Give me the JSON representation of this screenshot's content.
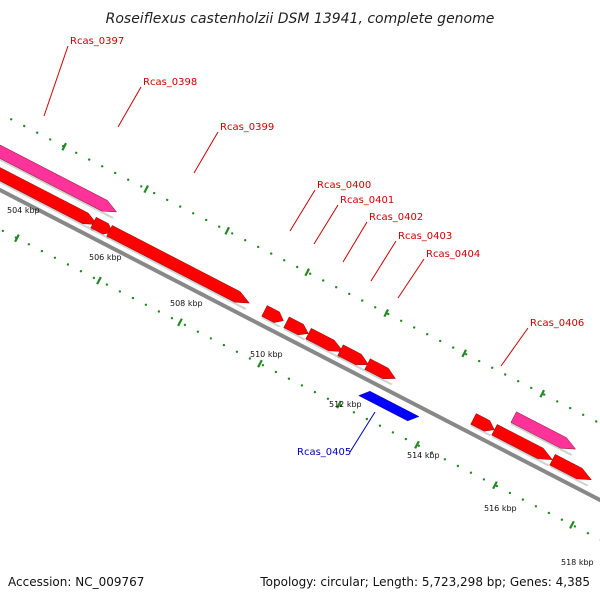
{
  "title": "Roseiflexus castenholzii DSM 13941, complete genome",
  "footer": {
    "accession": "Accession: NC_009767",
    "summary": "Topology: circular; Length: 5,723,298 bp; Genes: 4,385"
  },
  "colors": {
    "forward_cds": "#ff0000",
    "reverse_cds": "#0000ff",
    "forward_feature": "#ff3399",
    "backbone": "#888888",
    "forward_label": "#cc0000",
    "reverse_label": "#0000bb",
    "ticks": "#228822"
  },
  "ticks": [
    {
      "label": "504 kbp"
    },
    {
      "label": "506 kbp"
    },
    {
      "label": "508 kbp"
    },
    {
      "label": "510 kbp"
    },
    {
      "label": "512 kbp"
    },
    {
      "label": "514 kbp"
    },
    {
      "label": "516 kbp"
    },
    {
      "label": "518 kbp"
    }
  ],
  "genes": [
    {
      "label": "Rcas_0397",
      "strand": "forward"
    },
    {
      "label": "Rcas_0398",
      "strand": "forward"
    },
    {
      "label": "Rcas_0399",
      "strand": "forward"
    },
    {
      "label": "Rcas_0400",
      "strand": "forward"
    },
    {
      "label": "Rcas_0401",
      "strand": "forward"
    },
    {
      "label": "Rcas_0402",
      "strand": "forward"
    },
    {
      "label": "Rcas_0403",
      "strand": "forward"
    },
    {
      "label": "Rcas_0404",
      "strand": "forward"
    },
    {
      "label": "Rcas_0405",
      "strand": "reverse"
    },
    {
      "label": "Rcas_0406",
      "strand": "forward"
    }
  ]
}
